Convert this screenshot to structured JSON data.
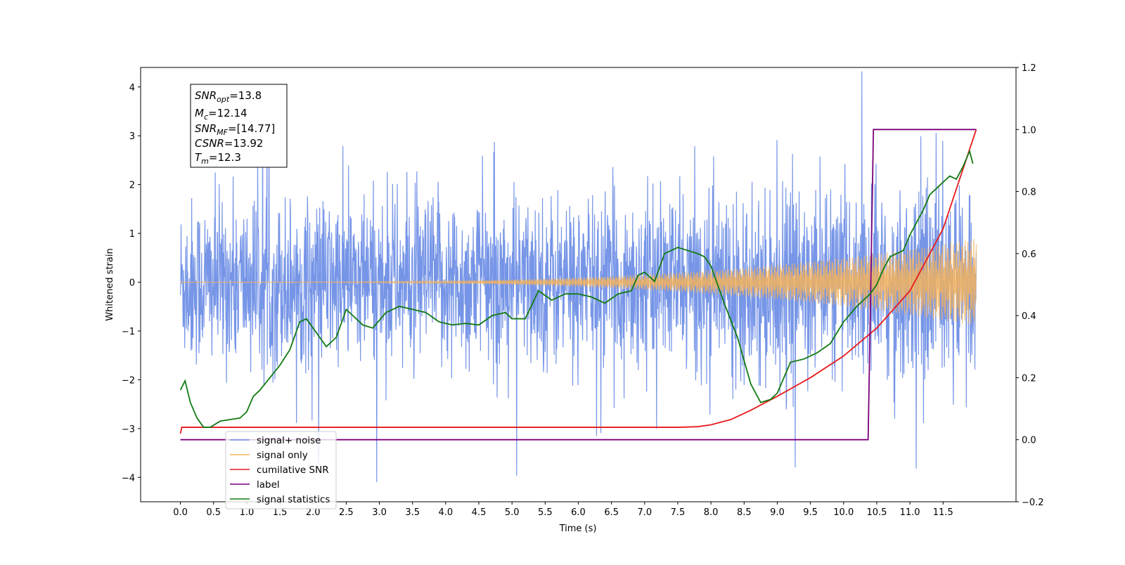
{
  "chart_data": {
    "type": "line",
    "title": "",
    "xlabel": "Time (s)",
    "ylabel": "Whitened strain",
    "ylabel_right": "",
    "xlim": [
      -0.6,
      12.6
    ],
    "ylim": [
      -4.5,
      4.4
    ],
    "ylim_right": [
      -0.2,
      1.2
    ],
    "x_ticks": [
      "0.0",
      "0.5",
      "1.0",
      "1.5",
      "2.0",
      "2.5",
      "3.0",
      "3.5",
      "4.0",
      "4.5",
      "5.0",
      "5.5",
      "6.0",
      "6.5",
      "7.0",
      "7.5",
      "8.0",
      "8.5",
      "9.0",
      "9.5",
      "10.0",
      "10.5",
      "11.0",
      "11.5"
    ],
    "y_ticks": [
      "4",
      "3",
      "2",
      "1",
      "0",
      "−1",
      "−2",
      "−3",
      "−4"
    ],
    "y_ticks_right": [
      "1.2",
      "1.0",
      "0.8",
      "0.6",
      "0.4",
      "0.2",
      "0.0",
      "−0.2"
    ],
    "grid": false,
    "legend_position": "bottom-left",
    "annotation": {
      "snr_opt": {
        "base": "SNR",
        "sub": "opt",
        "value": "=13.8"
      },
      "mc": {
        "base": "M",
        "sub": "c",
        "value": "=12.14"
      },
      "snr_mf": {
        "base": "SNR",
        "sub": "MF",
        "value": "=[14.77]"
      },
      "csnr": {
        "base": "CSNR",
        "sub": "",
        "value": "=13.92"
      },
      "tm": {
        "base": "T",
        "sub": "m",
        "value": "=12.3"
      }
    },
    "series": [
      {
        "name": "signal+ noise",
        "color": "#6f8fe6",
        "axis": "left",
        "description_values": "noise band roughly ±1.5, spikes up to ~±4, spanning t=0 to 12.0"
      },
      {
        "name": "signal only",
        "color": "#f5b35c",
        "axis": "left",
        "chirp_start_amplitude": 0.0,
        "chirp_end_amplitude": 0.9,
        "t_start": 0.0,
        "t_end": 12.0
      },
      {
        "name": "cumilative SNR",
        "color": "#e8191b",
        "axis": "right",
        "x": [
          0.0,
          0.02,
          7.5,
          7.8,
          8.0,
          8.3,
          8.6,
          9.0,
          9.5,
          10.0,
          10.5,
          11.0,
          11.5,
          12.0
        ],
        "y": [
          0.02,
          0.04,
          0.04,
          0.042,
          0.048,
          0.065,
          0.095,
          0.14,
          0.2,
          0.27,
          0.36,
          0.48,
          0.68,
          1.0
        ]
      },
      {
        "name": "label",
        "color": "#7a007a",
        "axis": "right",
        "x": [
          0.0,
          10.37,
          10.45,
          12.0
        ],
        "y": [
          0.0,
          0.0,
          1.0,
          1.0
        ]
      },
      {
        "name": "signal statistics",
        "color": "#127a12",
        "axis": "right",
        "x": [
          0.0,
          0.07,
          0.15,
          0.25,
          0.35,
          0.45,
          0.6,
          0.75,
          0.9,
          1.0,
          1.1,
          1.2,
          1.35,
          1.5,
          1.65,
          1.8,
          1.9,
          2.0,
          2.1,
          2.2,
          2.35,
          2.5,
          2.6,
          2.75,
          2.9,
          3.1,
          3.3,
          3.5,
          3.7,
          3.9,
          4.1,
          4.3,
          4.5,
          4.7,
          4.9,
          5.0,
          5.2,
          5.4,
          5.6,
          5.8,
          6.0,
          6.2,
          6.4,
          6.6,
          6.8,
          6.9,
          7.0,
          7.15,
          7.3,
          7.5,
          7.65,
          7.8,
          7.9,
          8.0,
          8.2,
          8.4,
          8.6,
          8.75,
          8.9,
          9.0,
          9.2,
          9.4,
          9.6,
          9.8,
          10.0,
          10.2,
          10.4,
          10.5,
          10.6,
          10.7,
          10.8,
          10.9,
          11.0,
          11.1,
          11.2,
          11.3,
          11.4,
          11.5,
          11.6,
          11.7,
          11.8,
          11.9,
          11.95
        ],
        "y": [
          0.16,
          0.19,
          0.12,
          0.07,
          0.04,
          0.04,
          0.06,
          0.065,
          0.07,
          0.09,
          0.14,
          0.16,
          0.2,
          0.24,
          0.29,
          0.38,
          0.39,
          0.36,
          0.33,
          0.3,
          0.33,
          0.42,
          0.4,
          0.37,
          0.36,
          0.41,
          0.43,
          0.42,
          0.41,
          0.38,
          0.37,
          0.375,
          0.37,
          0.4,
          0.41,
          0.39,
          0.39,
          0.48,
          0.45,
          0.47,
          0.47,
          0.46,
          0.44,
          0.47,
          0.48,
          0.53,
          0.54,
          0.51,
          0.6,
          0.62,
          0.61,
          0.6,
          0.59,
          0.56,
          0.44,
          0.33,
          0.18,
          0.12,
          0.13,
          0.15,
          0.25,
          0.26,
          0.28,
          0.31,
          0.38,
          0.43,
          0.47,
          0.5,
          0.55,
          0.59,
          0.6,
          0.61,
          0.66,
          0.7,
          0.74,
          0.79,
          0.81,
          0.83,
          0.85,
          0.84,
          0.88,
          0.93,
          0.89
        ]
      }
    ]
  }
}
